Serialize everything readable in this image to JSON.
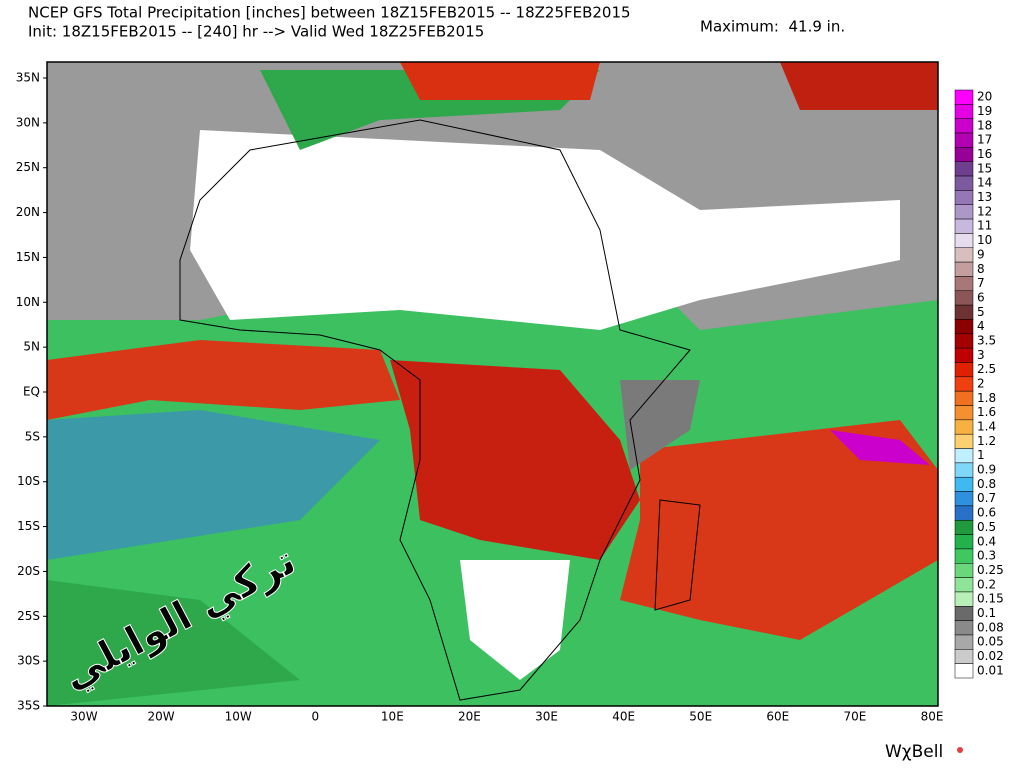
{
  "header": {
    "title": "NCEP GFS Total Precipitation [inches] between 18Z15FEB2015 -- 18Z25FEB2015",
    "init": "Init: 18Z15FEB2015 -- [240] hr --> Valid Wed 18Z25FEB2015",
    "maximum": "Maximum:  41.9 in."
  },
  "map": {
    "lat_labels": [
      "35N",
      "30N",
      "25N",
      "20N",
      "15N",
      "10N",
      "5N",
      "EQ",
      "5S",
      "10S",
      "15S",
      "20S",
      "25S",
      "30S",
      "35S"
    ],
    "lon_labels": [
      "30W",
      "20W",
      "10W",
      "0",
      "10E",
      "20E",
      "30E",
      "40E",
      "50E",
      "60E",
      "70E",
      "80E"
    ]
  },
  "legend": {
    "items": [
      {
        "label": "20",
        "color": "#ff00ff"
      },
      {
        "label": "19",
        "color": "#e600e6"
      },
      {
        "label": "18",
        "color": "#cc00cc"
      },
      {
        "label": "17",
        "color": "#b300b3"
      },
      {
        "label": "16",
        "color": "#990099"
      },
      {
        "label": "15",
        "color": "#6f3f8f"
      },
      {
        "label": "14",
        "color": "#7d5aa0"
      },
      {
        "label": "13",
        "color": "#9577b5"
      },
      {
        "label": "12",
        "color": "#ad97c9"
      },
      {
        "label": "11",
        "color": "#c7b8dd"
      },
      {
        "label": "10",
        "color": "#e6dcee"
      },
      {
        "label": "9",
        "color": "#d8bfbf"
      },
      {
        "label": "8",
        "color": "#c49e9e"
      },
      {
        "label": "7",
        "color": "#a87878"
      },
      {
        "label": "6",
        "color": "#8c5656"
      },
      {
        "label": "5",
        "color": "#6e3232"
      },
      {
        "label": "4",
        "color": "#8b0000"
      },
      {
        "label": "3.5",
        "color": "#a50000"
      },
      {
        "label": "3",
        "color": "#c00000"
      },
      {
        "label": "2.5",
        "color": "#e02000"
      },
      {
        "label": "2",
        "color": "#f04010"
      },
      {
        "label": "1.8",
        "color": "#f07020"
      },
      {
        "label": "1.6",
        "color": "#f49030"
      },
      {
        "label": "1.4",
        "color": "#f8b040"
      },
      {
        "label": "1.2",
        "color": "#fcd070"
      },
      {
        "label": "1",
        "color": "#c0f0ff"
      },
      {
        "label": "0.9",
        "color": "#80d8f8"
      },
      {
        "label": "0.8",
        "color": "#40b8f0"
      },
      {
        "label": "0.7",
        "color": "#3090e0"
      },
      {
        "label": "0.6",
        "color": "#2870c8"
      },
      {
        "label": "0.5",
        "color": "#1f9a3c"
      },
      {
        "label": "0.4",
        "color": "#22b24c"
      },
      {
        "label": "0.3",
        "color": "#40c860"
      },
      {
        "label": "0.25",
        "color": "#6ad87a"
      },
      {
        "label": "0.2",
        "color": "#90e49a"
      },
      {
        "label": "0.15",
        "color": "#b8f0b8"
      },
      {
        "label": "0.1",
        "color": "#6a6a6a"
      },
      {
        "label": "0.08",
        "color": "#8a8a8a"
      },
      {
        "label": "0.05",
        "color": "#a8a8a8"
      },
      {
        "label": "0.02",
        "color": "#cbcbcb"
      },
      {
        "label": "0.01",
        "color": "#ffffff"
      }
    ]
  },
  "watermark": "تركي الوايلي",
  "footer": {
    "brand": "WχBell"
  }
}
